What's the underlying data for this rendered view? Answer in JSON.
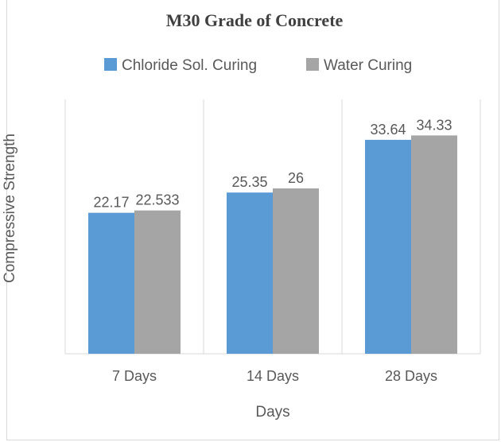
{
  "chart_data": {
    "type": "bar",
    "title": "M30 Grade of Concrete",
    "xlabel": "Days",
    "ylabel": "Compressive Strength",
    "categories": [
      "7 Days",
      "14 Days",
      "28 Days"
    ],
    "series": [
      {
        "name": "Chloride Sol. Curing",
        "values": [
          22.17,
          25.35,
          33.64
        ],
        "labels": [
          "22.17",
          "25.35",
          "33.64"
        ],
        "color": "#5b9bd5"
      },
      {
        "name": "Water Curing",
        "values": [
          22.533,
          26,
          34.33
        ],
        "labels": [
          "22.533",
          "26",
          "34.33"
        ],
        "color": "#a5a5a5"
      }
    ],
    "ylim": [
      0,
      40
    ],
    "legend_position": "top",
    "grid": "vertical category separators",
    "axis_color": "#d9d9d9",
    "text_color": "#595959"
  }
}
